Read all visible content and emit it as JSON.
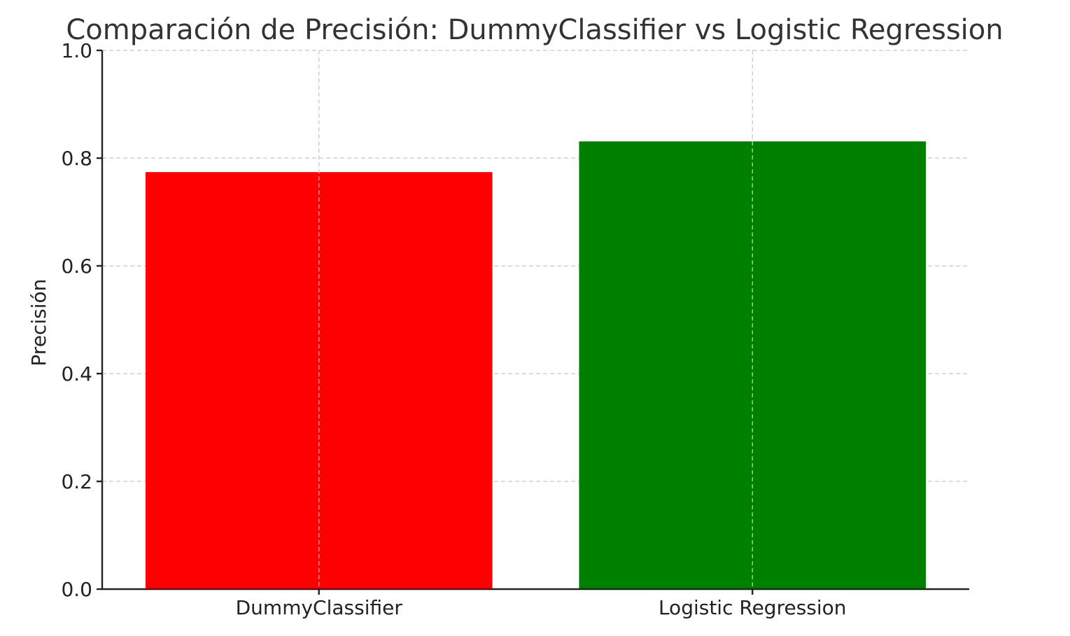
{
  "chart_data": {
    "type": "bar",
    "title": "Comparación de Precisión: DummyClassifier vs Logistic Regression",
    "xlabel": "",
    "ylabel": "Precisión",
    "categories": [
      "DummyClassifier",
      "Logistic Regression"
    ],
    "values": [
      0.774,
      0.831
    ],
    "colors": [
      "#ff0000",
      "#008000"
    ],
    "ylim": [
      0,
      1.0
    ],
    "yticks": [
      "0.0",
      "0.2",
      "0.4",
      "0.6",
      "0.8",
      "1.0"
    ],
    "grid": true
  }
}
